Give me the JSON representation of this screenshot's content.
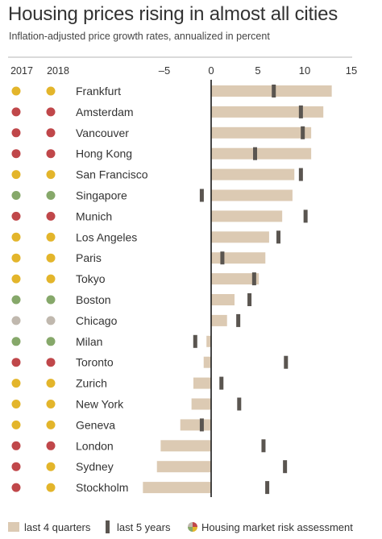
{
  "title": "Housing prices rising in almost all cities",
  "subtitle": "Inflation-adjusted price growth rates, annualized in percent",
  "year_labels": [
    "2017",
    "2018"
  ],
  "colors": {
    "bar": "#dccab3",
    "marker": "#5a5550",
    "axis": "#1a1a1a",
    "risk": {
      "red": "#c0474a",
      "yellow": "#e3b52b",
      "green": "#86a86a",
      "gray": "#c0b8ae"
    }
  },
  "legend": {
    "bar_label": "last 4 quarters",
    "marker_label": "last 5 years",
    "risk_label": "Housing market risk assessment"
  },
  "chart_data": {
    "type": "bar",
    "title": "Housing prices rising in almost all cities",
    "subtitle": "Inflation-adjusted price growth rates, annualized in percent",
    "xlim": [
      -7.5,
      15
    ],
    "xticks": [
      -5,
      0,
      5,
      10,
      15
    ],
    "xtick_labels": [
      "–5",
      "0",
      "5",
      "10",
      "15"
    ],
    "categories": [
      "Frankfurt",
      "Amsterdam",
      "Vancouver",
      "Hong Kong",
      "San Francisco",
      "Singapore",
      "Munich",
      "Los Angeles",
      "Paris",
      "Tokyo",
      "Boston",
      "Chicago",
      "Milan",
      "Toronto",
      "Zurich",
      "New York",
      "Geneva",
      "London",
      "Sydney",
      "Stockholm"
    ],
    "series": [
      {
        "name": "last 4 quarters",
        "values": [
          12.9,
          12.0,
          10.7,
          10.7,
          8.9,
          8.7,
          7.6,
          6.2,
          5.8,
          5.1,
          2.5,
          1.7,
          -0.5,
          -0.8,
          -1.9,
          -2.1,
          -3.3,
          -5.4,
          -5.8,
          -7.3
        ]
      },
      {
        "name": "last 5 years",
        "values": [
          6.7,
          9.6,
          9.8,
          4.7,
          9.6,
          -1.0,
          10.1,
          7.2,
          1.2,
          4.6,
          4.1,
          2.9,
          -1.7,
          8.0,
          1.1,
          3.0,
          -1.0,
          5.6,
          7.9,
          6.0
        ]
      }
    ],
    "risk_2017": [
      "yellow",
      "red",
      "red",
      "red",
      "yellow",
      "green",
      "red",
      "yellow",
      "yellow",
      "yellow",
      "green",
      "gray",
      "green",
      "red",
      "yellow",
      "yellow",
      "yellow",
      "red",
      "red",
      "red"
    ],
    "risk_2018": [
      "yellow",
      "red",
      "red",
      "red",
      "yellow",
      "green",
      "red",
      "yellow",
      "yellow",
      "yellow",
      "green",
      "gray",
      "green",
      "red",
      "yellow",
      "yellow",
      "yellow",
      "red",
      "yellow",
      "yellow"
    ],
    "grid": false,
    "legend_position": "bottom"
  }
}
